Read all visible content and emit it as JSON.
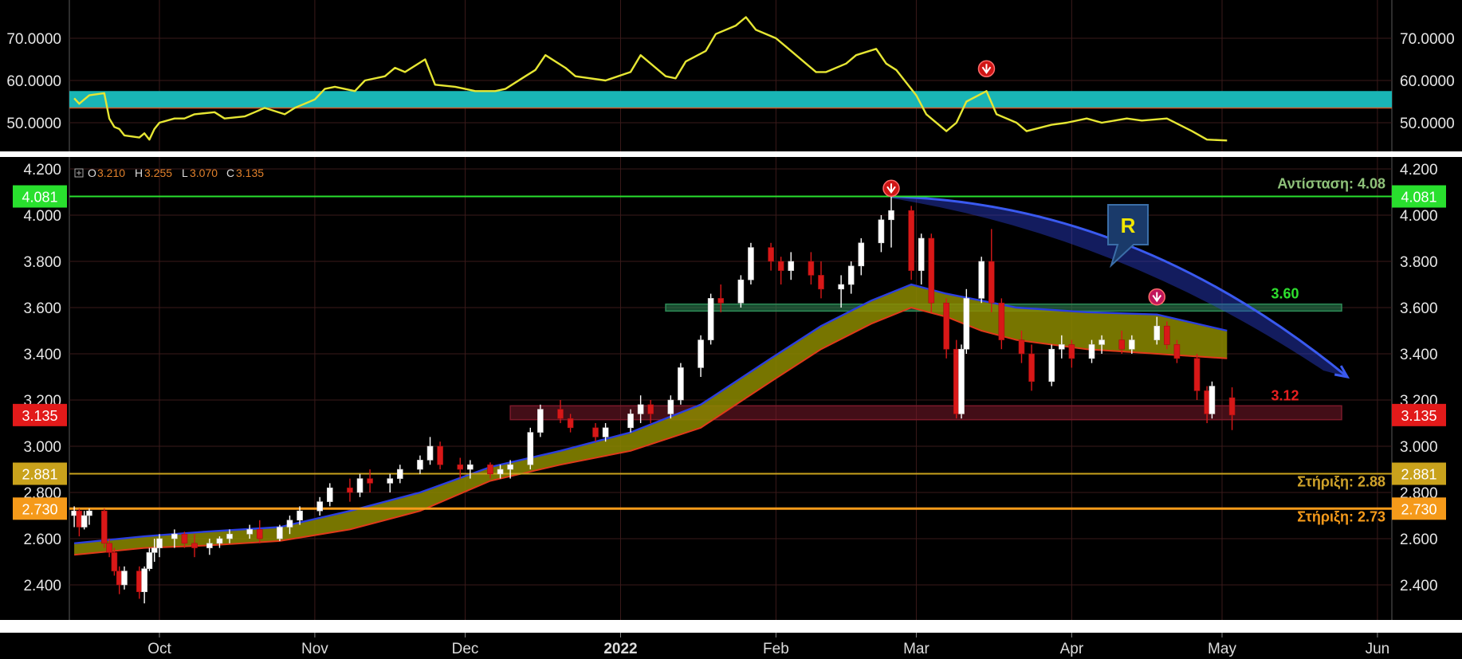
{
  "chart_data": [
    {
      "type": "line",
      "panel": "indicator",
      "ylim": [
        45,
        75
      ],
      "yticks": [
        50,
        60,
        70
      ],
      "ytick_labels": [
        "50.0000",
        "60.0000",
        "70.0000"
      ],
      "band": [
        53.5,
        57.5
      ],
      "band_color": "#19b5b5",
      "line_color": "#e6e633",
      "marker_date": "2022-03-15",
      "marker_value": 57.5,
      "series": [
        {
          "x": [
            "2021-09-14",
            "2021-09-15",
            "2021-09-16",
            "2021-09-17",
            "2021-09-20",
            "2021-09-21",
            "2021-09-22",
            "2021-09-23",
            "2021-09-24",
            "2021-09-27",
            "2021-09-28",
            "2021-09-29",
            "2021-09-30",
            "2021-10-01",
            "2021-10-04",
            "2021-10-06",
            "2021-10-08",
            "2021-10-12",
            "2021-10-14",
            "2021-10-18",
            "2021-10-20",
            "2021-10-22",
            "2021-10-26",
            "2021-10-28",
            "2021-11-01",
            "2021-11-03",
            "2021-11-05",
            "2021-11-09",
            "2021-11-11",
            "2021-11-15",
            "2021-11-17",
            "2021-11-19",
            "2021-11-23",
            "2021-11-25",
            "2021-11-29",
            "2021-12-01",
            "2021-12-03",
            "2021-12-07",
            "2021-12-09",
            "2021-12-13",
            "2021-12-15",
            "2021-12-17",
            "2021-12-21",
            "2021-12-23",
            "2021-12-29",
            "2022-01-03",
            "2022-01-05",
            "2022-01-10",
            "2022-01-12",
            "2022-01-14",
            "2022-01-18",
            "2022-01-20",
            "2022-01-24",
            "2022-01-26",
            "2022-01-28",
            "2022-02-01",
            "2022-02-03",
            "2022-02-07",
            "2022-02-09",
            "2022-02-11",
            "2022-02-15",
            "2022-02-17",
            "2022-02-21",
            "2022-02-23",
            "2022-02-25",
            "2022-03-01",
            "2022-03-03",
            "2022-03-07",
            "2022-03-09",
            "2022-03-11",
            "2022-03-15",
            "2022-03-17",
            "2022-03-21",
            "2022-03-23",
            "2022-03-28",
            "2022-03-31",
            "2022-04-04",
            "2022-04-07",
            "2022-04-12",
            "2022-04-15",
            "2022-04-20",
            "2022-04-25",
            "2022-04-28",
            "2022-05-02"
          ],
          "y": [
            55.8,
            54.5,
            55.5,
            56.5,
            57,
            51,
            49,
            48.5,
            47,
            46.5,
            47.5,
            46,
            48.5,
            50,
            51,
            51,
            52,
            52.5,
            51,
            51.5,
            52.5,
            53.5,
            52,
            53.5,
            55.5,
            58,
            58.5,
            57.5,
            60,
            61,
            63,
            62,
            65,
            59,
            58.5,
            58,
            57.5,
            57.5,
            58,
            61,
            62.5,
            66,
            63,
            61,
            60,
            62,
            66,
            61,
            60.5,
            64.5,
            67,
            71,
            73,
            75,
            72,
            70,
            68,
            64,
            62,
            62,
            64,
            66,
            67.5,
            64,
            62.5,
            56.5,
            52,
            48,
            50,
            55,
            57.5,
            52,
            50,
            48,
            49.5,
            50,
            51,
            50,
            51,
            50.5,
            51,
            48,
            46,
            45.8
          ]
        }
      ]
    },
    {
      "type": "candlestick",
      "panel": "price",
      "ylim": [
        2.3,
        4.2
      ],
      "yticks": [
        2.4,
        2.6,
        2.8,
        3.0,
        3.2,
        3.4,
        3.6,
        3.8,
        4.0,
        4.2
      ],
      "ytick_labels": [
        "2.400",
        "2.600",
        "2.800",
        "3.000",
        "3.200",
        "3.400",
        "3.600",
        "3.800",
        "4.000",
        "4.200"
      ],
      "ohlc_label": {
        "o_key": "O",
        "o": "3.210",
        "h_key": "H",
        "h": "3.255",
        "l_key": "L",
        "l": "3.070",
        "c_key": "C",
        "c": "3.135"
      },
      "price_tags": [
        {
          "label": "4.081",
          "value": 4.081,
          "color": "#29e02e"
        },
        {
          "label": "3.135",
          "value": 3.135,
          "color": "#e21a1a"
        },
        {
          "label": "2.881",
          "value": 2.881,
          "color": "#c9a21c"
        },
        {
          "label": "2.730",
          "value": 2.73,
          "color": "#f59a1a"
        }
      ],
      "levels": [
        {
          "value": 4.081,
          "color": "#29e02e",
          "annotation": "Αντίσταση: 4.08",
          "annotation_color": "#8fc27a"
        },
        {
          "value": 2.881,
          "color": "#c9a21c",
          "annotation": "Στήριξη: 2.88",
          "annotation_color": "#d0a32a"
        },
        {
          "value": 2.73,
          "color": "#f59a1a",
          "annotation": "Στήριξη: 2.73",
          "annotation_color": "#f59a1a"
        }
      ],
      "zones": [
        {
          "from": "2022-01-10",
          "to": "2022-05-31",
          "low": 3.585,
          "high": 3.615,
          "color": "#2e8b57",
          "label": "3.60",
          "label_color": "#2ee02e"
        },
        {
          "from": "2021-12-10",
          "to": "2022-05-31",
          "low": 3.115,
          "high": 3.175,
          "color": "#7a1a2a",
          "label": "3.12",
          "label_color": "#e82020"
        }
      ],
      "trendline": {
        "from": "2022-02-24",
        "from_value": 4.08,
        "to": "2022-05-26",
        "to_value": 3.3,
        "color": "#2a3fd0"
      },
      "callout": {
        "text": "R",
        "color": "#1a3a6a",
        "text_color": "#f2e600"
      },
      "down_markers": [
        {
          "x": "2022-02-24",
          "value": 4.13
        },
        {
          "x": "2022-04-18",
          "value": 3.66
        }
      ],
      "ribbon": {
        "x": [
          "2021-09-14",
          "2021-09-28",
          "2021-10-10",
          "2021-10-25",
          "2021-11-08",
          "2021-11-22",
          "2021-12-06",
          "2021-12-20",
          "2022-01-03",
          "2022-01-17",
          "2022-01-31",
          "2022-02-10",
          "2022-02-20",
          "2022-02-28",
          "2022-03-07",
          "2022-03-14",
          "2022-03-21",
          "2022-04-04",
          "2022-04-18",
          "2022-05-02"
        ],
        "upper": [
          2.58,
          2.61,
          2.63,
          2.65,
          2.72,
          2.8,
          2.91,
          2.98,
          3.06,
          3.18,
          3.38,
          3.52,
          3.63,
          3.7,
          3.66,
          3.63,
          3.6,
          3.58,
          3.57,
          3.5
        ],
        "lower": [
          2.53,
          2.56,
          2.57,
          2.59,
          2.64,
          2.72,
          2.85,
          2.92,
          2.98,
          3.08,
          3.28,
          3.42,
          3.53,
          3.6,
          3.56,
          3.5,
          3.46,
          3.42,
          3.4,
          3.38
        ]
      },
      "candles": [
        [
          "2021-09-14",
          2.7,
          2.74,
          2.65,
          2.72
        ],
        [
          "2021-09-15",
          2.72,
          2.73,
          2.61,
          2.65
        ],
        [
          "2021-09-16",
          2.65,
          2.72,
          2.64,
          2.7
        ],
        [
          "2021-09-17",
          2.7,
          2.73,
          2.66,
          2.72
        ],
        [
          "2021-09-20",
          2.72,
          2.73,
          2.56,
          2.58
        ],
        [
          "2021-09-21",
          2.58,
          2.6,
          2.52,
          2.54
        ],
        [
          "2021-09-22",
          2.54,
          2.56,
          2.44,
          2.46
        ],
        [
          "2021-09-23",
          2.46,
          2.48,
          2.36,
          2.4
        ],
        [
          "2021-09-24",
          2.4,
          2.48,
          2.38,
          2.46
        ],
        [
          "2021-09-27",
          2.46,
          2.48,
          2.34,
          2.37
        ],
        [
          "2021-09-28",
          2.37,
          2.48,
          2.32,
          2.47
        ],
        [
          "2021-09-29",
          2.47,
          2.56,
          2.46,
          2.54
        ],
        [
          "2021-09-30",
          2.54,
          2.6,
          2.5,
          2.56
        ],
        [
          "2021-10-01",
          2.56,
          2.62,
          2.52,
          2.6
        ],
        [
          "2021-10-04",
          2.6,
          2.64,
          2.56,
          2.62
        ],
        [
          "2021-10-06",
          2.62,
          2.63,
          2.56,
          2.58
        ],
        [
          "2021-10-08",
          2.58,
          2.62,
          2.52,
          2.56
        ],
        [
          "2021-10-11",
          2.56,
          2.6,
          2.53,
          2.58
        ],
        [
          "2021-10-13",
          2.58,
          2.61,
          2.56,
          2.6
        ],
        [
          "2021-10-15",
          2.6,
          2.64,
          2.58,
          2.62
        ],
        [
          "2021-10-19",
          2.62,
          2.66,
          2.6,
          2.64
        ],
        [
          "2021-10-21",
          2.64,
          2.68,
          2.58,
          2.6
        ],
        [
          "2021-10-25",
          2.6,
          2.66,
          2.59,
          2.65
        ],
        [
          "2021-10-27",
          2.65,
          2.7,
          2.62,
          2.68
        ],
        [
          "2021-10-29",
          2.68,
          2.74,
          2.66,
          2.72
        ],
        [
          "2021-11-02",
          2.72,
          2.78,
          2.7,
          2.76
        ],
        [
          "2021-11-04",
          2.76,
          2.84,
          2.74,
          2.82
        ],
        [
          "2021-11-08",
          2.82,
          2.86,
          2.76,
          2.8
        ],
        [
          "2021-11-10",
          2.8,
          2.88,
          2.78,
          2.86
        ],
        [
          "2021-11-12",
          2.86,
          2.9,
          2.8,
          2.84
        ],
        [
          "2021-11-16",
          2.84,
          2.88,
          2.8,
          2.86
        ],
        [
          "2021-11-18",
          2.86,
          2.92,
          2.84,
          2.9
        ],
        [
          "2021-11-22",
          2.9,
          2.96,
          2.88,
          2.94
        ],
        [
          "2021-11-24",
          2.94,
          3.04,
          2.92,
          3.0
        ],
        [
          "2021-11-26",
          3.0,
          3.02,
          2.9,
          2.92
        ],
        [
          "2021-11-30",
          2.92,
          2.95,
          2.86,
          2.9
        ],
        [
          "2021-12-02",
          2.9,
          2.94,
          2.86,
          2.92
        ],
        [
          "2021-12-06",
          2.92,
          2.93,
          2.86,
          2.88
        ],
        [
          "2021-12-08",
          2.88,
          2.92,
          2.86,
          2.9
        ],
        [
          "2021-12-10",
          2.9,
          2.94,
          2.86,
          2.92
        ],
        [
          "2021-12-14",
          2.92,
          3.08,
          2.9,
          3.06
        ],
        [
          "2021-12-16",
          3.06,
          3.18,
          3.04,
          3.16
        ],
        [
          "2021-12-20",
          3.16,
          3.2,
          3.1,
          3.12
        ],
        [
          "2021-12-22",
          3.12,
          3.14,
          3.06,
          3.08
        ],
        [
          "2021-12-27",
          3.08,
          3.1,
          3.02,
          3.04
        ],
        [
          "2021-12-29",
          3.04,
          3.1,
          3.02,
          3.08
        ],
        [
          "2022-01-03",
          3.08,
          3.16,
          3.06,
          3.14
        ],
        [
          "2022-01-05",
          3.14,
          3.22,
          3.1,
          3.18
        ],
        [
          "2022-01-07",
          3.18,
          3.2,
          3.1,
          3.14
        ],
        [
          "2022-01-11",
          3.14,
          3.22,
          3.12,
          3.2
        ],
        [
          "2022-01-13",
          3.2,
          3.36,
          3.18,
          3.34
        ],
        [
          "2022-01-17",
          3.34,
          3.48,
          3.3,
          3.46
        ],
        [
          "2022-01-19",
          3.46,
          3.66,
          3.44,
          3.64
        ],
        [
          "2022-01-21",
          3.64,
          3.7,
          3.58,
          3.62
        ],
        [
          "2022-01-25",
          3.62,
          3.74,
          3.6,
          3.72
        ],
        [
          "2022-01-27",
          3.72,
          3.88,
          3.7,
          3.86
        ],
        [
          "2022-01-31",
          3.86,
          3.88,
          3.76,
          3.8
        ],
        [
          "2022-02-02",
          3.8,
          3.82,
          3.7,
          3.76
        ],
        [
          "2022-02-04",
          3.76,
          3.84,
          3.72,
          3.8
        ],
        [
          "2022-02-08",
          3.8,
          3.84,
          3.7,
          3.74
        ],
        [
          "2022-02-10",
          3.74,
          3.8,
          3.64,
          3.68
        ],
        [
          "2022-02-14",
          3.68,
          3.74,
          3.6,
          3.7
        ],
        [
          "2022-02-16",
          3.7,
          3.8,
          3.66,
          3.78
        ],
        [
          "2022-02-18",
          3.78,
          3.9,
          3.74,
          3.88
        ],
        [
          "2022-02-22",
          3.88,
          4.0,
          3.84,
          3.98
        ],
        [
          "2022-02-24",
          3.98,
          4.08,
          3.86,
          4.02
        ],
        [
          "2022-02-28",
          4.02,
          4.04,
          3.72,
          3.76
        ],
        [
          "2022-03-02",
          3.76,
          3.92,
          3.7,
          3.9
        ],
        [
          "2022-03-04",
          3.9,
          3.92,
          3.58,
          3.62
        ],
        [
          "2022-03-07",
          3.62,
          3.64,
          3.38,
          3.42
        ],
        [
          "2022-03-09",
          3.42,
          3.46,
          3.12,
          3.14
        ],
        [
          "2022-03-10",
          3.14,
          3.44,
          3.12,
          3.42
        ],
        [
          "2022-03-11",
          3.42,
          3.68,
          3.4,
          3.64
        ],
        [
          "2022-03-14",
          3.64,
          3.82,
          3.62,
          3.8
        ],
        [
          "2022-03-16",
          3.8,
          3.94,
          3.58,
          3.62
        ],
        [
          "2022-03-18",
          3.62,
          3.64,
          3.42,
          3.46
        ],
        [
          "2022-03-22",
          3.46,
          3.5,
          3.36,
          3.4
        ],
        [
          "2022-03-24",
          3.4,
          3.44,
          3.24,
          3.28
        ],
        [
          "2022-03-28",
          3.28,
          3.44,
          3.26,
          3.42
        ],
        [
          "2022-03-30",
          3.42,
          3.48,
          3.38,
          3.44
        ],
        [
          "2022-04-01",
          3.44,
          3.46,
          3.34,
          3.38
        ],
        [
          "2022-04-05",
          3.38,
          3.46,
          3.36,
          3.44
        ],
        [
          "2022-04-07",
          3.44,
          3.48,
          3.4,
          3.46
        ],
        [
          "2022-04-11",
          3.46,
          3.5,
          3.4,
          3.42
        ],
        [
          "2022-04-13",
          3.42,
          3.48,
          3.4,
          3.46
        ],
        [
          "2022-04-18",
          3.46,
          3.56,
          3.44,
          3.52
        ],
        [
          "2022-04-20",
          3.52,
          3.54,
          3.42,
          3.44
        ],
        [
          "2022-04-22",
          3.44,
          3.46,
          3.36,
          3.38
        ],
        [
          "2022-04-26",
          3.38,
          3.4,
          3.2,
          3.24
        ],
        [
          "2022-04-28",
          3.24,
          3.26,
          3.1,
          3.14
        ],
        [
          "2022-04-29",
          3.14,
          3.28,
          3.12,
          3.26
        ],
        [
          "2022-05-03",
          3.21,
          3.255,
          3.07,
          3.135
        ]
      ]
    }
  ],
  "time_axis": {
    "months": [
      {
        "label": "Oct",
        "date": "2021-10-01",
        "bold": false
      },
      {
        "label": "Nov",
        "date": "2021-11-01",
        "bold": false
      },
      {
        "label": "Dec",
        "date": "2021-12-01",
        "bold": false
      },
      {
        "label": "2022",
        "date": "2022-01-01",
        "bold": true
      },
      {
        "label": "Feb",
        "date": "2022-02-01",
        "bold": false
      },
      {
        "label": "Mar",
        "date": "2022-03-01",
        "bold": false
      },
      {
        "label": "Apr",
        "date": "2022-04-01",
        "bold": false
      },
      {
        "label": "May",
        "date": "2022-05-01",
        "bold": false
      },
      {
        "label": "Jun",
        "date": "2022-06-01",
        "bold": false
      }
    ]
  }
}
